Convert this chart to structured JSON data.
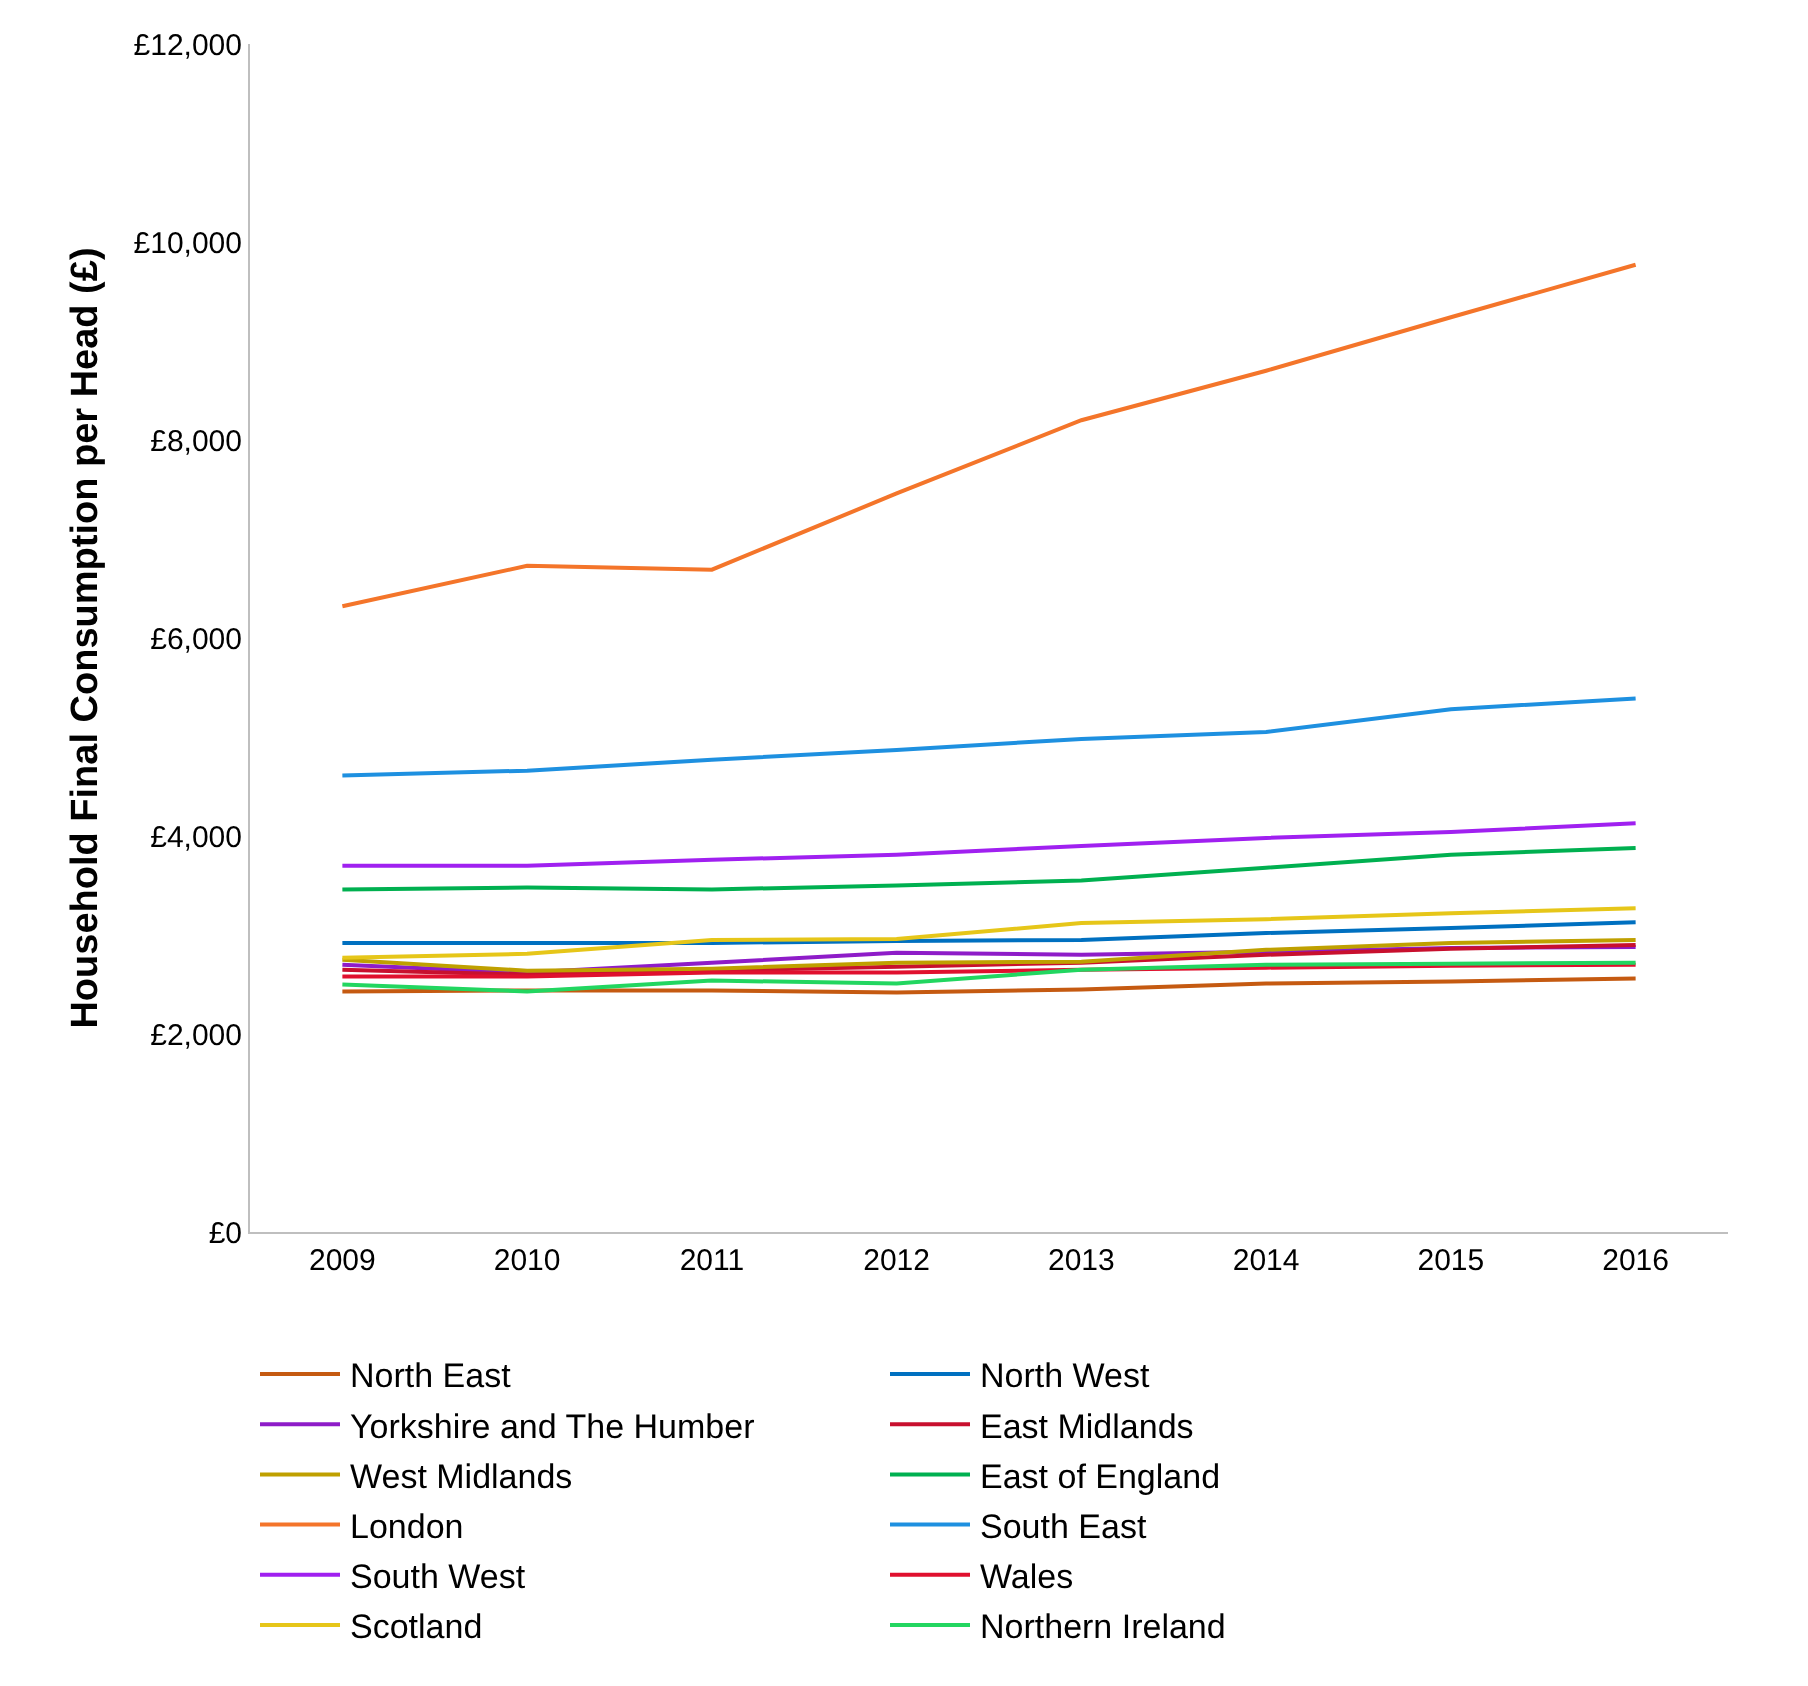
{
  "chart_data": {
    "type": "line",
    "ylabel": "Household Final Consumption per Head (£)",
    "categories": [
      "2009",
      "2010",
      "2011",
      "2012",
      "2013",
      "2014",
      "2015",
      "2016"
    ],
    "ylim": [
      0,
      12000
    ],
    "yticks": [
      {
        "value": 0,
        "label": "£0"
      },
      {
        "value": 2000,
        "label": "£2,000"
      },
      {
        "value": 4000,
        "label": "£4,000"
      },
      {
        "value": 6000,
        "label": "£6,000"
      },
      {
        "value": 8000,
        "label": "£8,000"
      },
      {
        "value": 10000,
        "label": "£10,000"
      },
      {
        "value": 12000,
        "label": "£12,000"
      }
    ],
    "grid": false,
    "legend": "bottom",
    "marker": "none",
    "line_style": "solid",
    "series": [
      {
        "name": "North East",
        "color": "#c55a11",
        "values": [
          2430,
          2440,
          2440,
          2420,
          2450,
          2510,
          2530,
          2560
        ]
      },
      {
        "name": "North West",
        "color": "#0070c0",
        "values": [
          2920,
          2920,
          2920,
          2940,
          2950,
          3020,
          3070,
          3130
        ]
      },
      {
        "name": "Yorkshire and The Humber",
        "color": "#8e1cc8",
        "values": [
          2700,
          2620,
          2720,
          2820,
          2800,
          2830,
          2870,
          2880
        ]
      },
      {
        "name": "East Midlands",
        "color": "#c8102e",
        "values": [
          2650,
          2600,
          2640,
          2680,
          2720,
          2800,
          2860,
          2900
        ]
      },
      {
        "name": "West Midlands",
        "color": "#bfa000",
        "values": [
          2750,
          2640,
          2660,
          2720,
          2730,
          2850,
          2920,
          2950
        ]
      },
      {
        "name": "East of England",
        "color": "#00b050",
        "values": [
          3460,
          3480,
          3460,
          3500,
          3550,
          3680,
          3810,
          3880
        ]
      },
      {
        "name": "London",
        "color": "#f4752a",
        "values": [
          6320,
          6730,
          6690,
          7460,
          8200,
          8700,
          9240,
          9770
        ]
      },
      {
        "name": "South East",
        "color": "#1e90e0",
        "values": [
          4610,
          4660,
          4770,
          4870,
          4980,
          5050,
          5280,
          5390
        ]
      },
      {
        "name": "South West",
        "color": "#a020f0",
        "values": [
          3700,
          3700,
          3760,
          3810,
          3900,
          3980,
          4040,
          4130
        ]
      },
      {
        "name": "Wales",
        "color": "#e0102e",
        "values": [
          2580,
          2580,
          2620,
          2620,
          2650,
          2670,
          2690,
          2700
        ]
      },
      {
        "name": "Scotland",
        "color": "#e6c619",
        "values": [
          2770,
          2810,
          2950,
          2960,
          3120,
          3160,
          3220,
          3270
        ]
      },
      {
        "name": "Northern Ireland",
        "color": "#22d660",
        "values": [
          2500,
          2430,
          2540,
          2510,
          2650,
          2700,
          2710,
          2720
        ]
      }
    ]
  }
}
